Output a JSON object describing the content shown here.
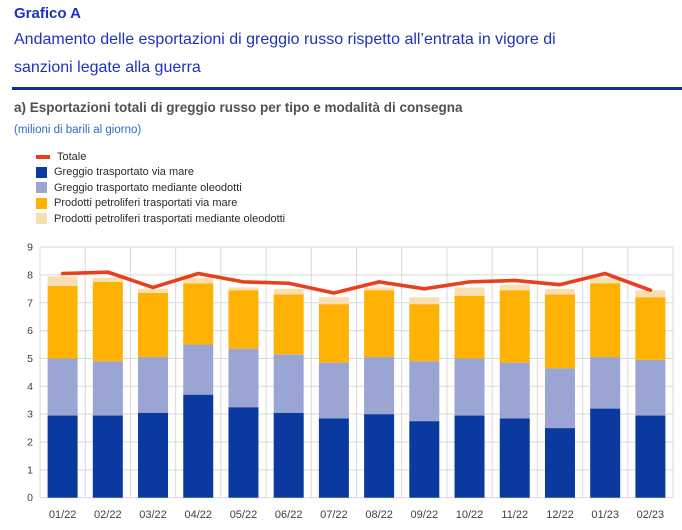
{
  "header": {
    "kicker": "Grafico A",
    "title_lines": [
      "Andamento delle esportazioni di greggio russo rispetto all’entrata in vigore di",
      "sanzioni legate alla guerra"
    ]
  },
  "panel": {
    "heading": "a) Esportazioni totali di greggio russo per tipo e modalità di consegna",
    "units": "(milioni di barili al giorno)"
  },
  "colors": {
    "title_blue": "#1B33BE",
    "rule_navy": "#0B2D9C",
    "heading_gray": "#515154",
    "units_blue": "#3366CC",
    "total_line_red": "#E8401D",
    "crude_sea_navy": "#0A3AA0",
    "crude_pipeline_lavender": "#9AA5D4",
    "products_sea_amber": "#FFB204",
    "products_pipeline_cream": "#F8DFB2",
    "gridline_gray": "#D9D9D9",
    "axis_label_gray": "#404040"
  },
  "legend": [
    {
      "label": "Totale",
      "swatch": "line",
      "color": "#E8401D"
    },
    {
      "label": "Greggio trasportato via mare",
      "swatch": "square",
      "color": "#0A3AA0"
    },
    {
      "label": "Greggio trasportato mediante oleodotti",
      "swatch": "square",
      "color": "#9AA5D4"
    },
    {
      "label": "Prodotti petroliferi trasportati via mare",
      "swatch": "square",
      "color": "#FFB204"
    },
    {
      "label": "Prodotti petroliferi trasportati mediante oleodotti",
      "swatch": "square",
      "color": "#F8DFB2"
    }
  ],
  "chart_data": {
    "type": "bar",
    "stacked": true,
    "title": "Esportazioni totali di greggio russo per tipo e modalità di consegna",
    "xlabel": "",
    "ylabel": "milioni di barili al giorno",
    "ylim": [
      0,
      9
    ],
    "yticks": [
      0,
      1,
      2,
      3,
      4,
      5,
      6,
      7,
      8,
      9
    ],
    "grid": true,
    "legend_position": "top-left",
    "categories": [
      "01/22",
      "02/22",
      "03/22",
      "04/22",
      "05/22",
      "06/22",
      "07/22",
      "08/22",
      "09/22",
      "10/22",
      "11/22",
      "12/22",
      "01/23",
      "02/23"
    ],
    "series": [
      {
        "name": "Greggio trasportato via mare",
        "role": "bar",
        "color": "#0A3AA0",
        "values": [
          2.95,
          2.95,
          3.05,
          3.7,
          3.25,
          3.05,
          2.85,
          3.0,
          2.75,
          2.95,
          2.85,
          2.5,
          3.2,
          2.95
        ]
      },
      {
        "name": "Greggio trasportato mediante oleodotti",
        "role": "bar",
        "color": "#9AA5D4",
        "values": [
          2.05,
          1.95,
          2.0,
          1.8,
          2.1,
          2.1,
          2.0,
          2.05,
          2.15,
          2.05,
          2.0,
          2.15,
          1.85,
          2.0
        ]
      },
      {
        "name": "Prodotti petroliferi trasportati via mare",
        "role": "bar",
        "color": "#FFB204",
        "values": [
          2.6,
          2.85,
          2.3,
          2.2,
          2.1,
          2.15,
          2.1,
          2.4,
          2.05,
          2.25,
          2.6,
          2.65,
          2.65,
          2.25
        ]
      },
      {
        "name": "Prodotti petroliferi trasportati mediante oleodotti",
        "role": "bar",
        "color": "#F8DFB2",
        "values": [
          0.35,
          0.15,
          0.15,
          0.2,
          0.1,
          0.2,
          0.25,
          0.1,
          0.25,
          0.3,
          0.2,
          0.2,
          0.2,
          0.25
        ]
      },
      {
        "name": "Totale",
        "role": "line",
        "color": "#E8401D",
        "values": [
          8.05,
          8.1,
          7.55,
          8.05,
          7.75,
          7.7,
          7.35,
          7.75,
          7.5,
          7.75,
          7.8,
          7.65,
          8.05,
          7.45
        ]
      }
    ]
  }
}
